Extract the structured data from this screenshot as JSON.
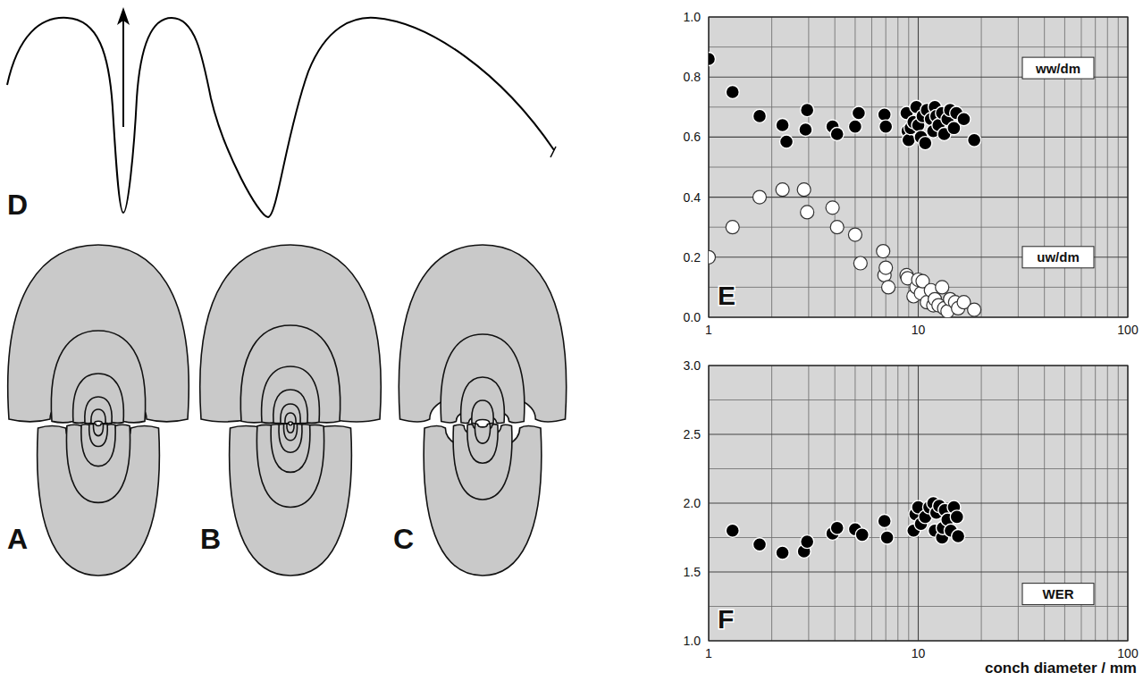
{
  "chart_data": [
    {
      "type": "scatter",
      "title": "E",
      "log": "x",
      "grid": true,
      "xlim": [
        1,
        100
      ],
      "xticks": [
        1,
        10,
        100
      ],
      "ylim": [
        0,
        1
      ],
      "yticks": [
        {
          "value": 0,
          "label": "0.0"
        },
        0.2,
        0.4,
        0.6,
        0.8,
        {
          "value": 1,
          "label": "1.0"
        }
      ],
      "series": [
        {
          "name": "ww/dm",
          "color": "#000000",
          "marker": "filled-circle",
          "x": [
            1.0,
            1.3,
            1.75,
            2.25,
            2.35,
            2.9,
            2.95,
            3.9,
            4.1,
            5.0,
            5.2,
            6.9,
            7.0,
            8.8,
            8.9,
            9.0,
            9.2,
            9.5,
            9.8,
            10,
            10.3,
            10.5,
            10.8,
            11,
            11.5,
            11.8,
            12,
            12.2,
            12.5,
            13,
            13.3,
            13.8,
            14.2,
            14.8,
            15.2,
            16.5,
            18.5
          ],
          "values": [
            0.86,
            0.75,
            0.67,
            0.64,
            0.585,
            0.625,
            0.69,
            0.635,
            0.61,
            0.635,
            0.68,
            0.675,
            0.635,
            0.68,
            0.62,
            0.59,
            0.63,
            0.65,
            0.7,
            0.64,
            0.6,
            0.67,
            0.58,
            0.69,
            0.66,
            0.62,
            0.7,
            0.67,
            0.64,
            0.68,
            0.61,
            0.66,
            0.69,
            0.63,
            0.68,
            0.66,
            0.59
          ]
        },
        {
          "name": "uw/dm",
          "color": "#ffffff",
          "marker": "open-circle",
          "x": [
            1.0,
            1.3,
            1.75,
            2.25,
            2.85,
            2.95,
            3.9,
            4.1,
            5.0,
            5.3,
            6.8,
            6.9,
            7.0,
            7.2,
            8.8,
            8.9,
            9.5,
            9.8,
            10,
            10.3,
            10.5,
            11,
            11.5,
            11.8,
            12,
            12.5,
            13,
            13.3,
            13.8,
            14.2,
            15,
            15.5,
            16.5,
            18.5
          ],
          "values": [
            0.2,
            0.3,
            0.4,
            0.425,
            0.425,
            0.35,
            0.365,
            0.3,
            0.275,
            0.18,
            0.22,
            0.14,
            0.165,
            0.1,
            0.14,
            0.13,
            0.07,
            0.1,
            0.125,
            0.08,
            0.12,
            0.05,
            0.09,
            0.04,
            0.06,
            0.04,
            0.1,
            0.03,
            0.02,
            0.06,
            0.05,
            0.03,
            0.05,
            0.025
          ]
        }
      ]
    },
    {
      "type": "scatter",
      "title": "F",
      "log": "x",
      "grid": true,
      "xlabel": "conch diameter / mm",
      "xlim": [
        1,
        100
      ],
      "xticks": [
        1,
        10,
        100
      ],
      "ylim": [
        1,
        3
      ],
      "yticks": [
        {
          "value": 1,
          "label": "1.0"
        },
        1.5,
        {
          "value": 2,
          "label": "2.0"
        },
        2.5,
        {
          "value": 3,
          "label": "3.0"
        }
      ],
      "series": [
        {
          "name": "WER",
          "color": "#000000",
          "marker": "filled-circle",
          "x": [
            1.3,
            1.75,
            2.25,
            2.85,
            2.95,
            3.9,
            4.1,
            5.0,
            5.4,
            6.9,
            7.1,
            9.5,
            9.7,
            10,
            10.3,
            10.8,
            11.3,
            11.8,
            12,
            12.2,
            12.6,
            13,
            13.1,
            13.4,
            13.8,
            14.3,
            14.8,
            15.3,
            15.5
          ],
          "values": [
            1.8,
            1.7,
            1.64,
            1.65,
            1.72,
            1.78,
            1.82,
            1.81,
            1.77,
            1.87,
            1.75,
            1.8,
            1.92,
            1.97,
            1.85,
            1.9,
            1.97,
            2.0,
            1.8,
            1.93,
            1.98,
            1.75,
            1.82,
            1.95,
            1.88,
            1.8,
            1.97,
            1.9,
            1.76
          ]
        }
      ]
    }
  ],
  "diagram": {
    "panels": [
      {
        "label": "D"
      },
      {
        "label": "A"
      },
      {
        "label": "B"
      },
      {
        "label": "C"
      }
    ]
  }
}
